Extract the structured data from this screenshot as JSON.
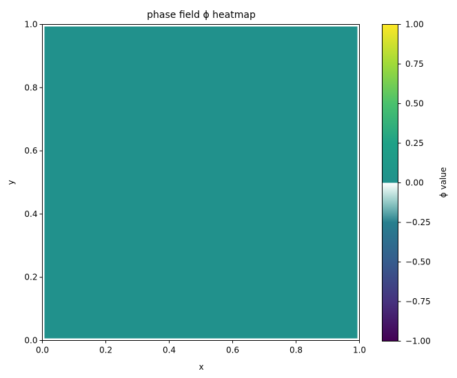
{
  "chart_data": {
    "type": "heatmap",
    "title": "phase field ϕ heatmap",
    "xlabel": "x",
    "ylabel": "y",
    "xlim": [
      0,
      1
    ],
    "ylim": [
      0,
      1
    ],
    "xticks": [
      "0.0",
      "0.2",
      "0.4",
      "0.6",
      "0.8",
      "1.0"
    ],
    "yticks": [
      "0.0",
      "0.2",
      "0.4",
      "0.6",
      "0.8",
      "1.0"
    ],
    "z": [
      [
        0
      ]
    ],
    "colormap": "viridis",
    "colorbar": {
      "label": "ϕ value",
      "range": [
        -1,
        1
      ],
      "ticks": [
        "−1.00",
        "−0.75",
        "−0.50",
        "−0.25",
        "0.00",
        "0.25",
        "0.50",
        "0.75",
        "1.00"
      ]
    },
    "grid": false
  }
}
